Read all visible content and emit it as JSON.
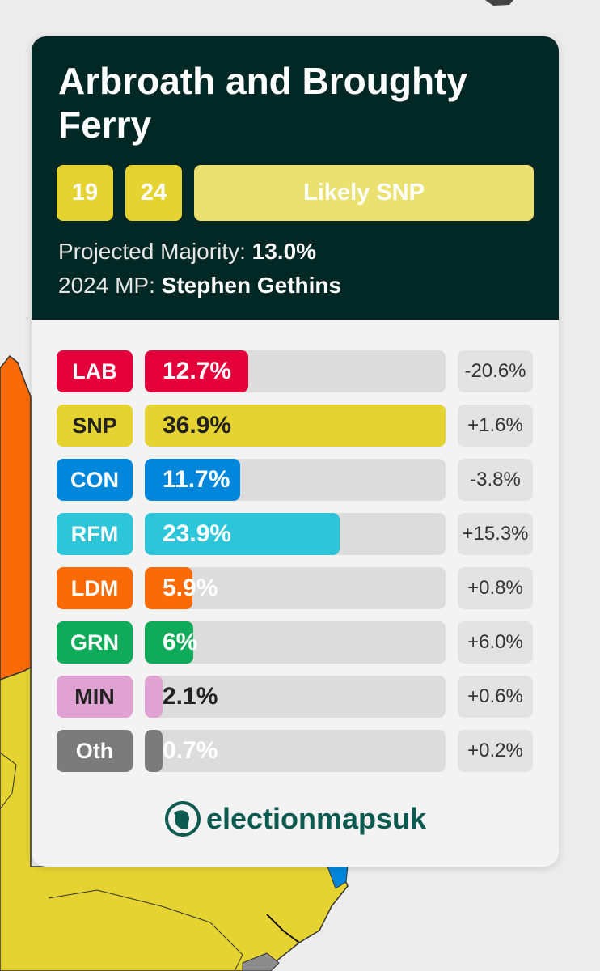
{
  "colors": {
    "header_bg": "#022826",
    "card_bg": "#f3f3f3",
    "snp_yellow": "#e5d331",
    "likely_snp": "#ebe170",
    "brand_green": "#0c5a4f"
  },
  "map": {
    "description_icon": "map-background"
  },
  "card": {
    "title": "Arbroath and Broughty Ferry",
    "year_a": "19",
    "year_b": "24",
    "rating": "Likely SNP",
    "majority_label": "Projected Majority:",
    "majority_value": "13.0%",
    "mp_label": "2024 MP:",
    "mp_value": "Stephen Gethins"
  },
  "results": [
    {
      "party": "LAB",
      "share": 12.7,
      "share_label": "12.7%",
      "change": "-20.6%",
      "color": "#e4003b",
      "label_dark": false,
      "party_text_color": "#ffffff"
    },
    {
      "party": "SNP",
      "share": 36.9,
      "share_label": "36.9%",
      "change": "+1.6%",
      "color": "#e5d331",
      "label_dark": true,
      "party_text_color": "#222222"
    },
    {
      "party": "CON",
      "share": 11.7,
      "share_label": "11.7%",
      "change": "-3.8%",
      "color": "#0087dc",
      "label_dark": false,
      "party_text_color": "#ffffff"
    },
    {
      "party": "RFM",
      "share": 23.9,
      "share_label": "23.9%",
      "change": "+15.3%",
      "color": "#2cc5da",
      "label_dark": false,
      "party_text_color": "#ffffff"
    },
    {
      "party": "LDM",
      "share": 5.9,
      "share_label": "5.9%",
      "change": "+0.8%",
      "color": "#fa6a06",
      "label_dark": false,
      "party_text_color": "#ffffff"
    },
    {
      "party": "GRN",
      "share": 6,
      "share_label": "6%",
      "change": "+6.0%",
      "color": "#0fab5a",
      "label_dark": false,
      "party_text_color": "#ffffff"
    },
    {
      "party": "MIN",
      "share": 2.1,
      "share_label": "2.1%",
      "change": "+0.6%",
      "color": "#e0a2d3",
      "label_dark": true,
      "party_text_color": "#222222"
    },
    {
      "party": "Oth",
      "share": 0.7,
      "share_label": "0.7%",
      "change": "+0.2%",
      "color": "#7b7b7b",
      "label_dark": false,
      "party_text_color": "#ffffff"
    }
  ],
  "scale_max_share": 36.9,
  "brand": {
    "name": "electionmapsuk",
    "icon": "globe-logo-icon"
  }
}
